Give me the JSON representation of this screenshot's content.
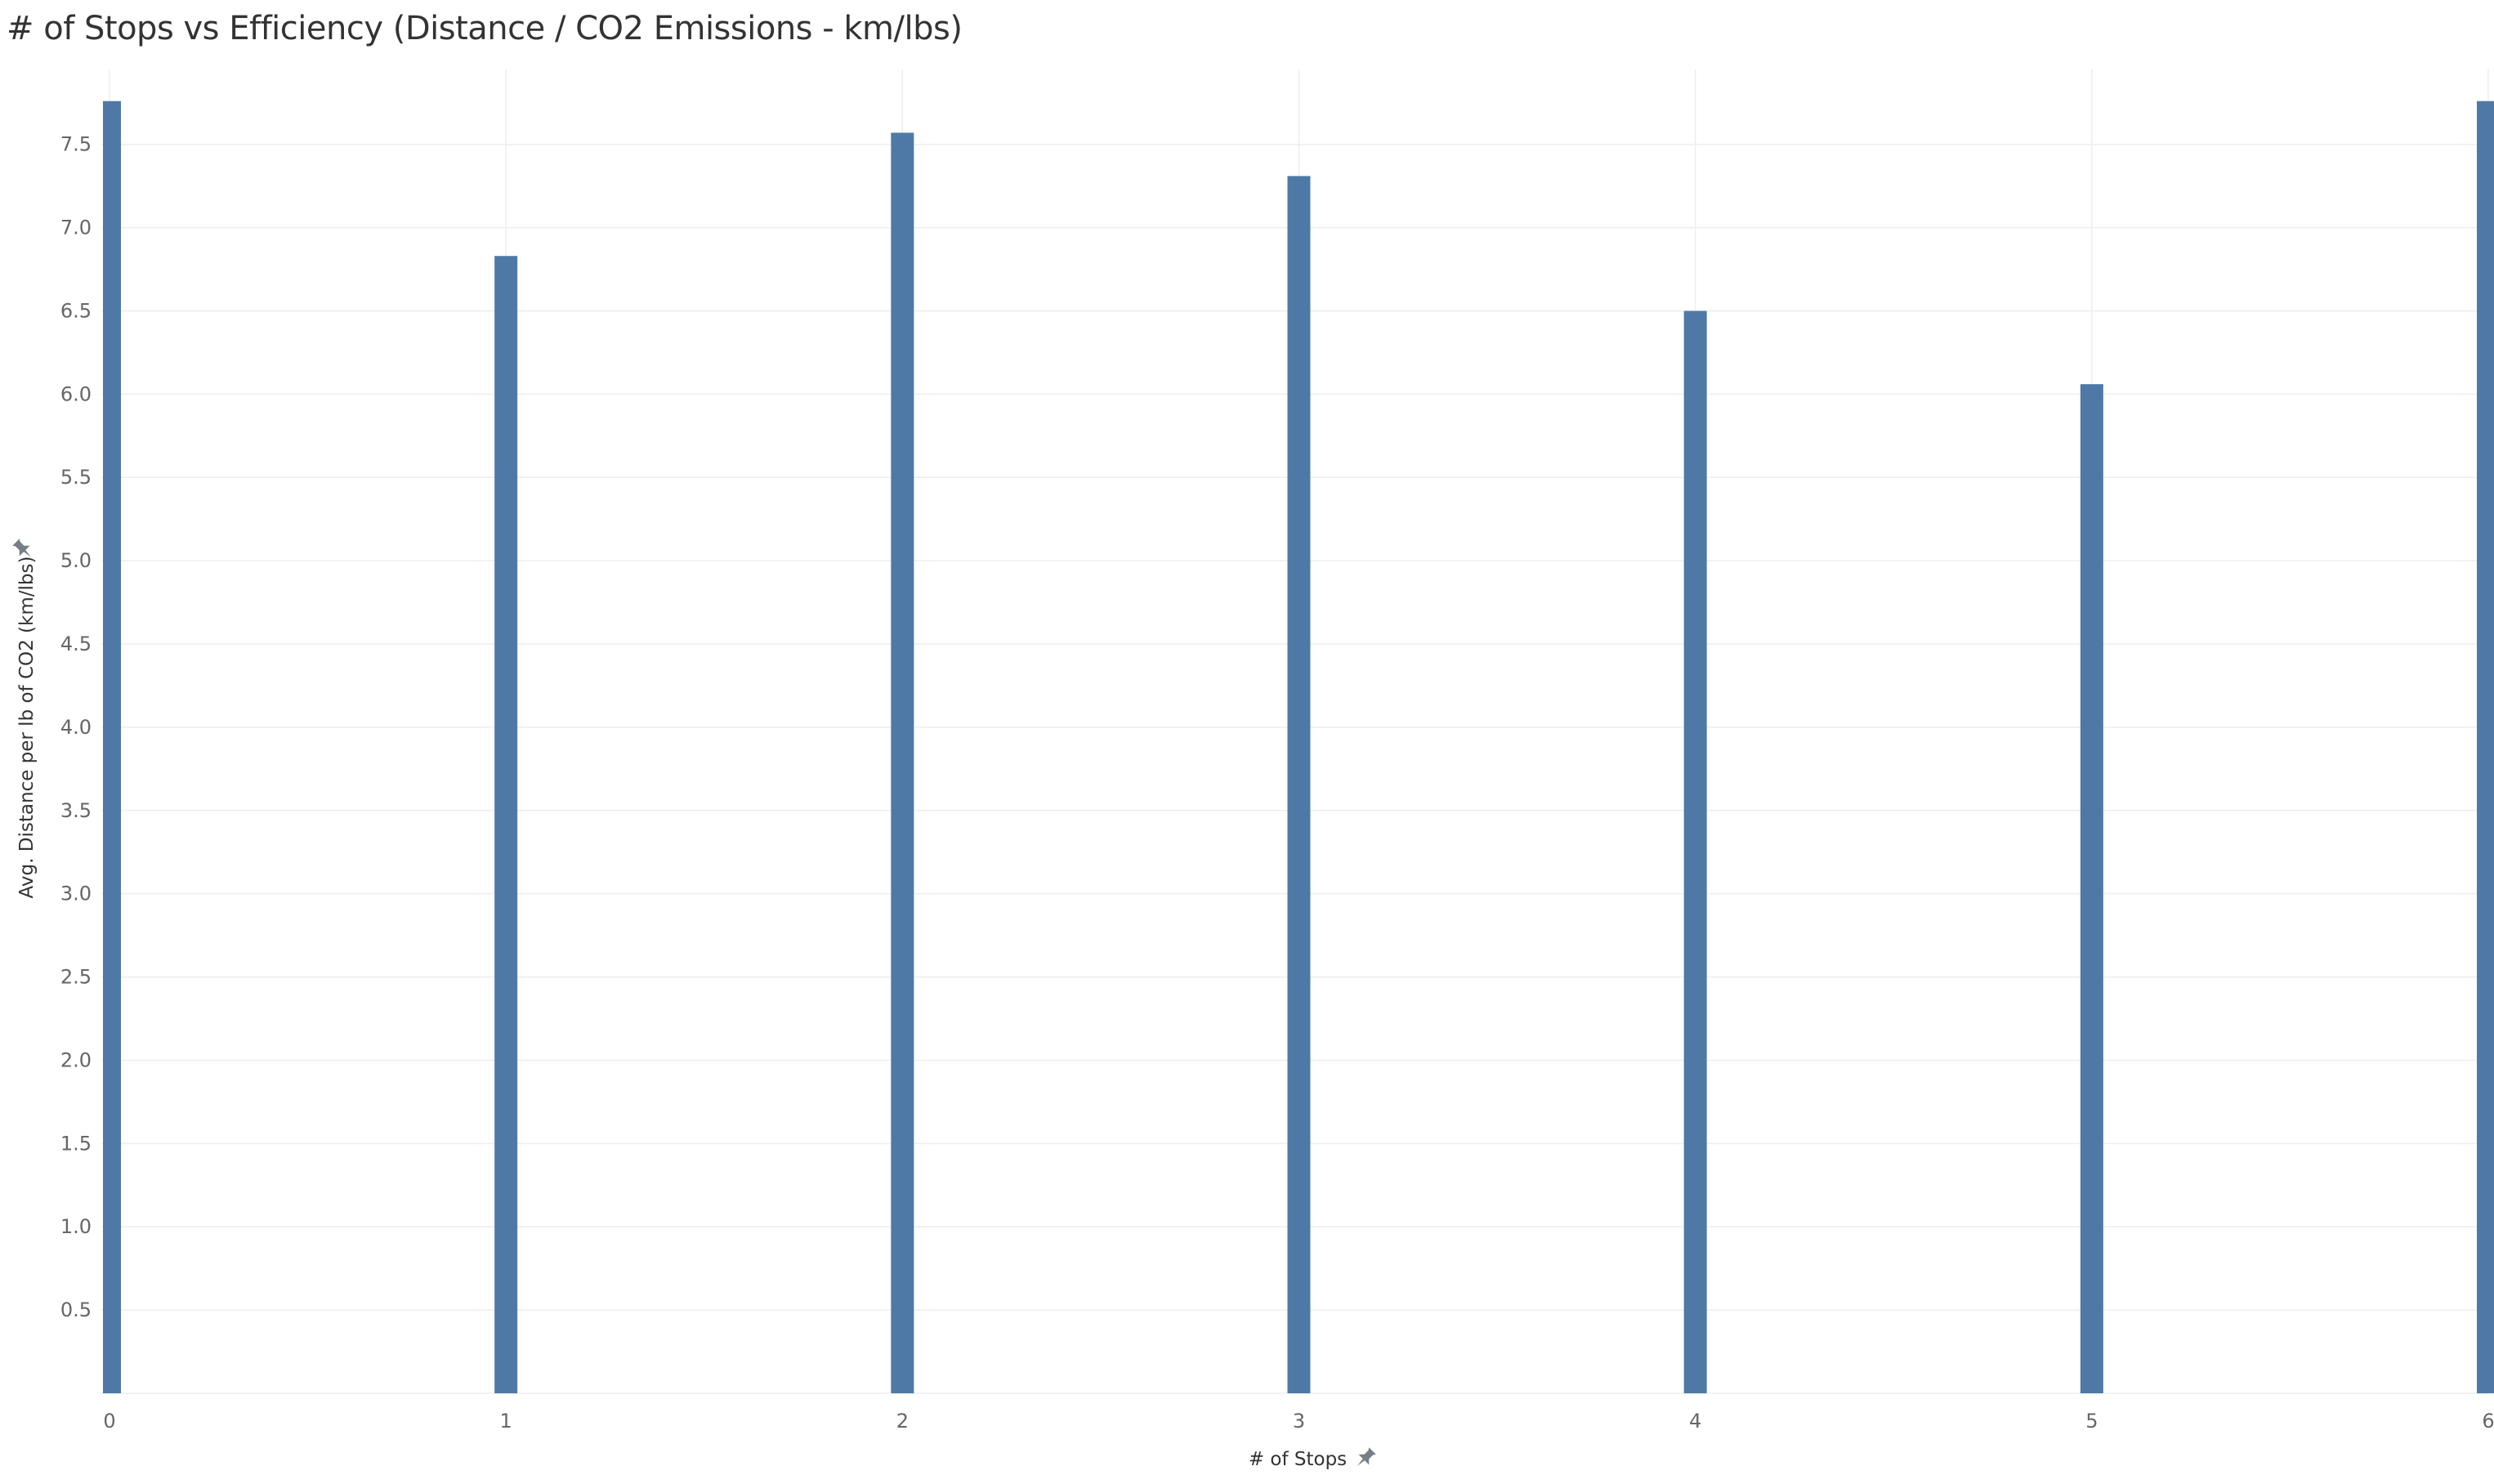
{
  "chart_data": {
    "type": "bar",
    "title": "# of Stops vs Efficiency (Distance / CO2 Emissions - km/lbs)",
    "xlabel": "# of Stops",
    "ylabel": "Avg. Distance per lb of CO2 (km/lbs)",
    "x": [
      0,
      1,
      2,
      3,
      4,
      5,
      6
    ],
    "values": [
      7.76,
      6.83,
      7.57,
      7.31,
      6.5,
      6.06,
      7.76
    ],
    "x_ticks": [
      "0",
      "1",
      "2",
      "3",
      "4",
      "5",
      "6"
    ],
    "y_ticks": [
      "0.5",
      "1.0",
      "1.5",
      "2.0",
      "2.5",
      "3.0",
      "3.5",
      "4.0",
      "4.5",
      "5.0",
      "5.5",
      "6.0",
      "6.5",
      "7.0",
      "7.5"
    ],
    "xlim": [
      0,
      6
    ],
    "ylim": [
      0,
      7.95
    ],
    "grid": true,
    "legend": "none",
    "bar_color": "#4e79a7",
    "grid_color": "#eeeeee",
    "axis_pin_icon": "pin-icon"
  }
}
